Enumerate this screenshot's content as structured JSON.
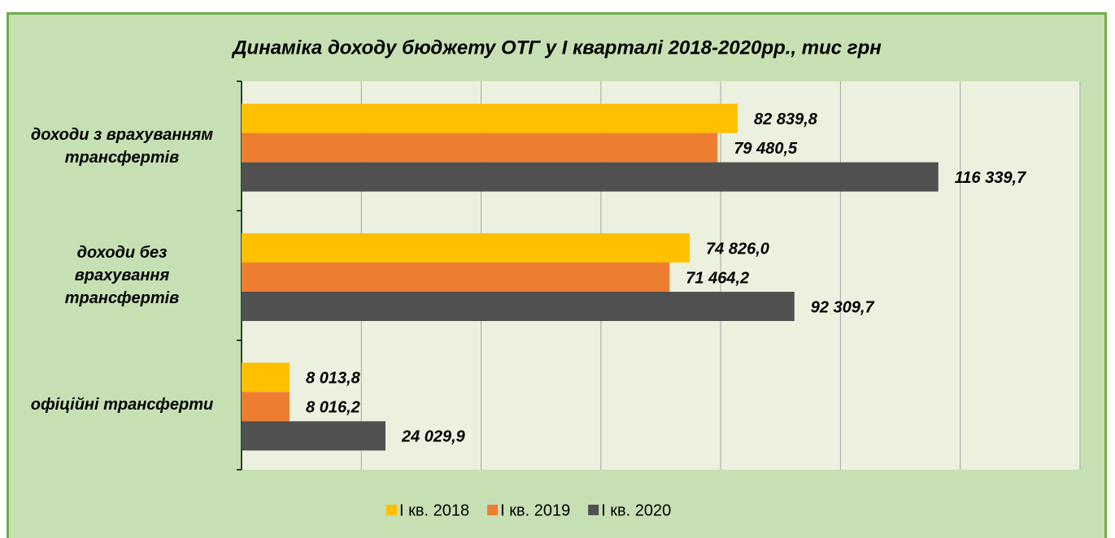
{
  "chart_data": {
    "type": "hbar",
    "title": "Динаміка доходу бюджету ОТГ у І кварталі 2018-2020рр., тис грн",
    "categories": [
      "доходи з врахуванням\nтрансфертів",
      "доходи без\nврахування\nтрансфертів",
      "офіційні трансферти"
    ],
    "series": [
      {
        "name": "І кв. 2018",
        "color": "#ffc000",
        "values": [
          82839.8,
          74826.0,
          8013.8
        ],
        "value_labels": [
          "82 839,8",
          "74 826,0",
          "8 013,8"
        ]
      },
      {
        "name": "І кв. 2019",
        "color": "#ed7d31",
        "values": [
          79480.5,
          71464.2,
          8016.2
        ],
        "value_labels": [
          "79 480,5",
          "71 464,2",
          "8 016,2"
        ]
      },
      {
        "name": "І кв. 2020",
        "color": "#505050",
        "values": [
          116339.7,
          92309.7,
          24029.9
        ],
        "value_labels": [
          "116 339,7",
          "92 309,7",
          "24 029,9"
        ]
      }
    ],
    "xlim": [
      0,
      140000
    ],
    "xticks": [
      0,
      20000,
      40000,
      60000,
      80000,
      100000,
      120000,
      140000
    ],
    "grid": true
  }
}
